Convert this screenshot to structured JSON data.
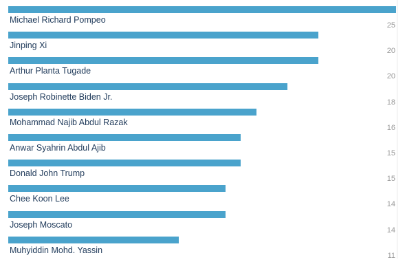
{
  "chart_data": {
    "type": "bar",
    "orientation": "horizontal",
    "categories": [
      "Michael Richard Pompeo",
      "Jinping Xi",
      "Arthur Planta Tugade",
      "Joseph Robinette Biden Jr.",
      "Mohammad Najib Abdul Razak",
      "Anwar Syahrin Abdul Ajib",
      "Donald John Trump",
      "Chee Koon Lee",
      "Joseph Moscato",
      "Muhyiddin Mohd. Yassin"
    ],
    "values": [
      25,
      20,
      20,
      18,
      16,
      15,
      15,
      14,
      14,
      11
    ],
    "xlim": [
      0,
      25
    ],
    "grid": false,
    "bar_color": "#4aa3cc"
  }
}
